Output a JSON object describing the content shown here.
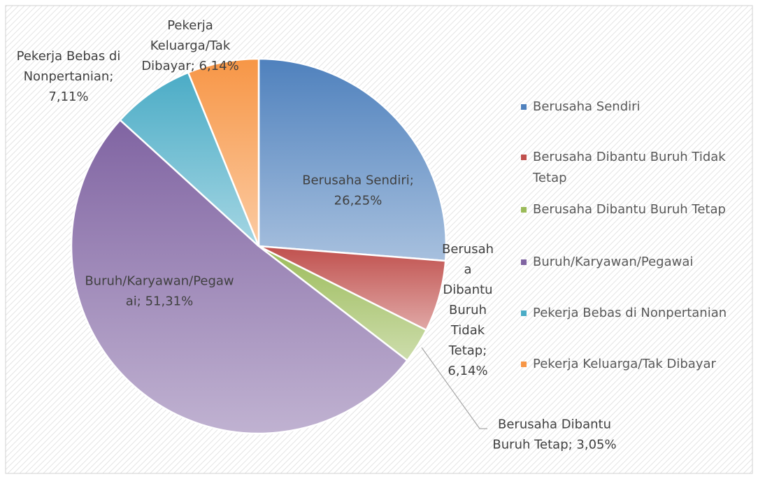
{
  "chart_data": {
    "type": "pie",
    "categories": [
      "Berusaha Sendiri",
      "Berusaha Dibantu Buruh Tidak Tetap",
      "Berusaha Dibantu Buruh Tetap",
      "Buruh/Karyawan/Pegawai",
      "Pekerja Bebas di Nonpertanian",
      "Pekerja Keluarga/Tak Dibayar"
    ],
    "values": [
      26.25,
      6.14,
      3.05,
      51.31,
      7.11,
      6.14
    ],
    "value_labels": [
      "Berusaha Sendiri; 26,25%",
      "Berusaha Dibantu Buruh Tidak Tetap; 6,14%",
      "Berusaha Dibantu Buruh Tetap; 3,05%",
      "Buruh/Karyawan/Pegawai; 51,31%",
      "Pekerja Bebas di Nonpertanian; 7,11%",
      "Pekerja Keluarga/Tak Dibayar; 6,14%"
    ],
    "colors": [
      "#4f81bd",
      "#c0504d",
      "#9bbb59",
      "#8064a2",
      "#4bacc6",
      "#f79646"
    ],
    "legend": "right"
  }
}
